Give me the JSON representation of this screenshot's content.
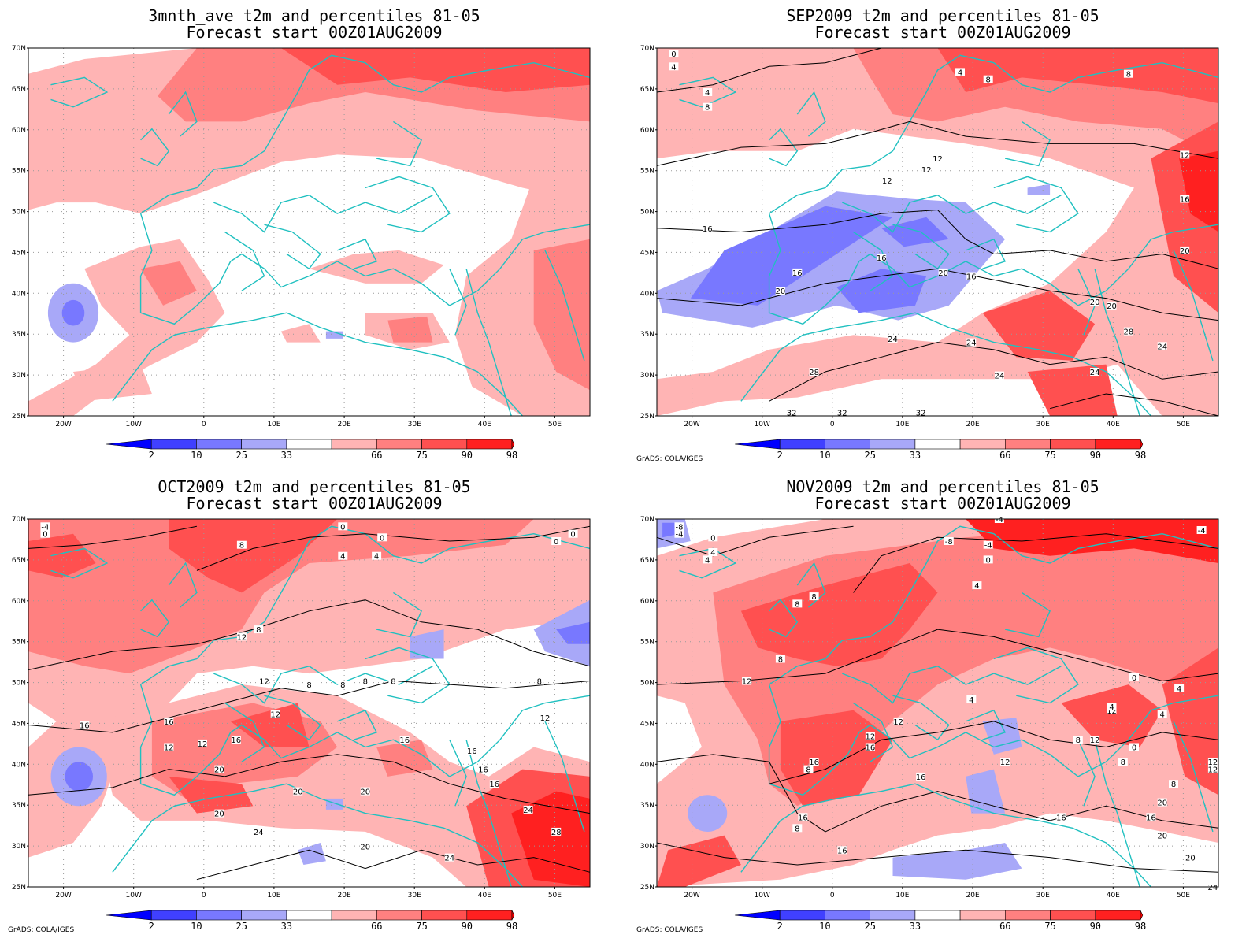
{
  "panels": [
    {
      "title1": "3mnth_ave t2m and percentiles 81-05",
      "title2": "Forecast start 00Z01AUG2009",
      "footer": "",
      "contour_labels": []
    },
    {
      "title1": "SEP2009 t2m and percentiles 81-05",
      "title2": "Forecast start 00Z01AUG2009",
      "footer": "GrADS: COLA/IGES",
      "contour_labels": [
        "0",
        "4",
        "4",
        "8",
        "4",
        "8",
        "8",
        "12",
        "12",
        "12",
        "16",
        "16",
        "20",
        "16",
        "20",
        "16",
        "20",
        "24",
        "24",
        "24",
        "28",
        "32",
        "32",
        "32",
        "12",
        "16",
        "20",
        "28",
        "24",
        "20",
        "24"
      ]
    },
    {
      "title1": "OCT2009 t2m and percentiles 81-05",
      "title2": "Forecast start 00Z01AUG2009",
      "footer": "GrADS: COLA/IGES",
      "contour_labels": [
        "-4",
        "0",
        "0",
        "4",
        "0",
        "0",
        "8",
        "4",
        "8",
        "12",
        "8",
        "12",
        "8",
        "8",
        "8",
        "8",
        "16",
        "16",
        "12",
        "12",
        "16",
        "12",
        "12",
        "16",
        "16",
        "12",
        "16",
        "20",
        "20",
        "16",
        "20",
        "20",
        "24",
        "28",
        "24",
        "20",
        "24",
        "0"
      ]
    },
    {
      "title1": "NOV2009 t2m and percentiles 81-05",
      "title2": "Forecast start 00Z01AUG2009",
      "footer": "GrADS: COLA/IGES",
      "contour_labels": [
        "-8",
        "-4",
        "0",
        "4",
        "4",
        "-4",
        "-8",
        "-4",
        "0",
        "4",
        "8",
        "8",
        "8",
        "12",
        "0",
        "4",
        "12",
        "4",
        "16",
        "12",
        "16",
        "8",
        "16",
        "8",
        "12",
        "12",
        "12",
        "8",
        "12",
        "16",
        "20",
        "16",
        "16",
        "20",
        "0",
        "4",
        "4",
        "8",
        "12",
        "8",
        "-4",
        "24",
        "16",
        "20"
      ]
    }
  ],
  "map": {
    "lat_labels": [
      "70N",
      "65N",
      "60N",
      "55N",
      "50N",
      "45N",
      "40N",
      "35N",
      "30N",
      "25N"
    ],
    "lon_labels": [
      "20W",
      "10W",
      "0",
      "10E",
      "20E",
      "30E",
      "40E",
      "50E"
    ]
  },
  "colorbar": {
    "labels": [
      "2",
      "10",
      "25",
      "33",
      "66",
      "75",
      "90",
      "98"
    ],
    "colors": [
      "#0000ff",
      "#4040ff",
      "#7878ff",
      "#a8a8f8",
      "#ffffff",
      "#ffb4b4",
      "#ff8080",
      "#ff5050",
      "#ff2020",
      "#ff0000"
    ]
  }
}
